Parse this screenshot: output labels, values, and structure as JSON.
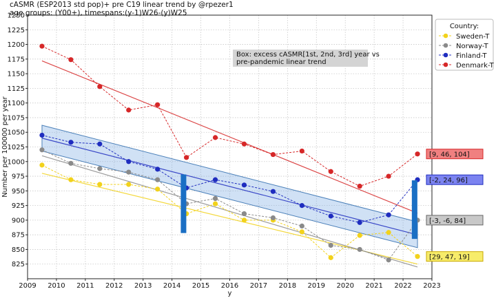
{
  "header": {
    "title_line1": "cASMR (ESP2013 std pop)+ pre C19 linear trend by @rpezer1",
    "title_line2": "age groups: (Y00+), timespans:(y-1)W26-(y)W25"
  },
  "chart_data": {
    "type": "line",
    "xlabel": "y",
    "ylabel": "Number per 100000 per year",
    "xlim": [
      2009,
      2023
    ],
    "ylim": [
      800,
      1250
    ],
    "x_ticks": [
      2009,
      2010,
      2011,
      2012,
      2013,
      2014,
      2015,
      2016,
      2017,
      2018,
      2019,
      2020,
      2021,
      2022,
      2023
    ],
    "y_ticks": [
      825,
      850,
      875,
      900,
      925,
      950,
      975,
      1000,
      1025,
      1050,
      1075,
      1100,
      1125,
      1150,
      1175,
      1200,
      1225,
      1250
    ],
    "grid": true,
    "legend": {
      "title": "Country:",
      "placement": "top-right"
    },
    "annotation": {
      "line1": "Box: excess cASMR[1st, 2nd, 3rd] year vs",
      "line2": "pre-pandemic linear trend"
    },
    "series": [
      {
        "name": "Sweden-T",
        "color": "#f2d21b",
        "x": [
          2009.5,
          2010.5,
          2011.5,
          2012.5,
          2013.5,
          2014.5,
          2015.5,
          2016.5,
          2017.5,
          2018.5,
          2019.5,
          2020.5,
          2021.5,
          2022.5
        ],
        "values": [
          994,
          969,
          961,
          961,
          953,
          911,
          928,
          900,
          900,
          880,
          836,
          874,
          879,
          838
        ],
        "trend": [
          980,
          825
        ],
        "end_label": "[29, 47, 19]"
      },
      {
        "name": "Norway-T",
        "color": "#8a8a8a",
        "x": [
          2009.5,
          2010.5,
          2011.5,
          2012.5,
          2013.5,
          2014.5,
          2015.5,
          2016.5,
          2017.5,
          2018.5,
          2019.5,
          2020.5,
          2021.5,
          2022.5
        ],
        "values": [
          1020,
          997,
          988,
          982,
          969,
          928,
          937,
          911,
          904,
          890,
          857,
          850,
          832,
          900
        ],
        "trend": [
          1010,
          820
        ],
        "end_label": "[-3, -6, 84]"
      },
      {
        "name": "Finland-T",
        "color": "#1f2dbf",
        "x": [
          2009.5,
          2010.5,
          2011.5,
          2012.5,
          2013.5,
          2014.5,
          2015.5,
          2016.5,
          2017.5,
          2018.5,
          2019.5,
          2020.5,
          2021.5,
          2022.5
        ],
        "values": [
          1045,
          1033,
          1030,
          1000,
          987,
          955,
          969,
          960,
          949,
          925,
          907,
          896,
          909,
          969
        ],
        "trend": [
          1040,
          875
        ],
        "band": 22,
        "end_label": "[-2, 24, 96]"
      },
      {
        "name": "Denmark-T",
        "color": "#d62728",
        "x": [
          2009.5,
          2010.5,
          2011.5,
          2012.5,
          2013.5,
          2014.5,
          2015.5,
          2016.5,
          2017.5,
          2018.5,
          2019.5,
          2020.5,
          2021.5,
          2022.5
        ],
        "values": [
          1197,
          1174,
          1128,
          1088,
          1097,
          1007,
          1041,
          1030,
          1012,
          1018,
          983,
          958,
          975,
          1013
        ],
        "trend": [
          1172,
          912
        ],
        "end_label": "[9, 46, 104]"
      }
    ],
    "excess_bars": [
      {
        "x": 2014.4,
        "from": 878,
        "to": 978,
        "color": "#1a6fc4"
      },
      {
        "x": 2022.4,
        "from": 868,
        "to": 968,
        "color": "#1a6fc4"
      }
    ],
    "end_label_styles": {
      "Denmark-T": {
        "bg": "#f08080",
        "border": "#d62728"
      },
      "Finland-T": {
        "bg": "#7b83f0",
        "border": "#1f2dbf"
      },
      "Norway-T": {
        "bg": "#c8c8c8",
        "border": "#666666"
      },
      "Sweden-T": {
        "bg": "#f7ec6a",
        "border": "#c9a800"
      }
    }
  }
}
